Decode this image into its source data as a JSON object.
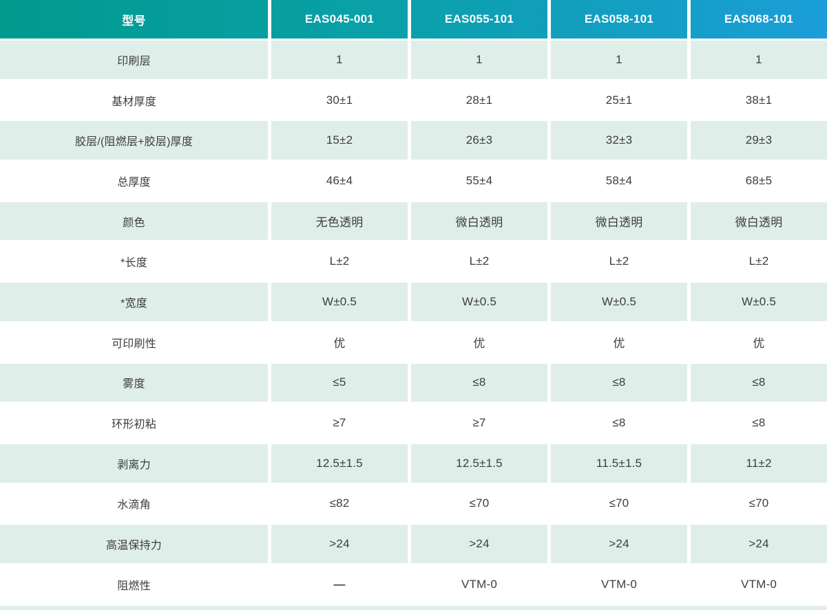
{
  "table": {
    "header": {
      "label": "型号",
      "models": [
        "EAS045-001",
        "EAS055-101",
        "EAS058-101",
        "EAS068-101"
      ]
    },
    "rows": [
      {
        "label": "印刷层",
        "values": [
          "1",
          "1",
          "1",
          "1"
        ]
      },
      {
        "label": "基材厚度",
        "values": [
          "30±1",
          "28±1",
          "25±1",
          "38±1"
        ]
      },
      {
        "label": "胶层/(阻燃层+胶层)厚度",
        "values": [
          "15±2",
          "26±3",
          "32±3",
          "29±3"
        ]
      },
      {
        "label": "总厚度",
        "values": [
          "46±4",
          "55±4",
          "58±4",
          "68±5"
        ]
      },
      {
        "label": "颜色",
        "values": [
          "无色透明",
          "微白透明",
          "微白透明",
          "微白透明"
        ]
      },
      {
        "label": "*长度",
        "values": [
          "L±2",
          "L±2",
          "L±2",
          "L±2"
        ]
      },
      {
        "label": "*宽度",
        "values": [
          "W±0.5",
          "W±0.5",
          "W±0.5",
          "W±0.5"
        ]
      },
      {
        "label": "可印刷性",
        "values": [
          "优",
          "优",
          "优",
          "优"
        ]
      },
      {
        "label": "雾度",
        "values": [
          "≤5",
          "≤8",
          "≤8",
          "≤8"
        ]
      },
      {
        "label": "环形初粘",
        "values": [
          "≥7",
          "≥7",
          "≤8",
          "≤8"
        ]
      },
      {
        "label": "剥离力",
        "values": [
          "12.5±1.5",
          "12.5±1.5",
          "11.5±1.5",
          "11±2"
        ]
      },
      {
        "label": "水滴角",
        "values": [
          "≤82",
          "≤70",
          "≤70",
          "≤70"
        ]
      },
      {
        "label": "高温保持力",
        "values": [
          ">24",
          ">24",
          ">24",
          ">24"
        ]
      },
      {
        "label": "阻燃性",
        "values": [
          "—",
          "VTM-0",
          "VTM-0",
          "VTM-0"
        ]
      }
    ],
    "colors": {
      "header_gradient_start": "#009a8e",
      "header_gradient_end": "#1b9ed8",
      "shaded_row_background": "#e0eeea",
      "body_text": "#3d3d3d"
    }
  }
}
